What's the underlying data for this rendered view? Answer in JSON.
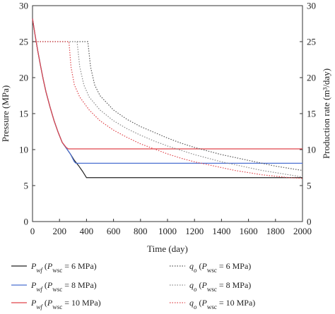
{
  "chart_data": {
    "type": "line",
    "xlabel": "Time (day)",
    "ylabel_left": "Pressure (MPa)",
    "ylabel_right": "Production rate (m³/day)",
    "xlim": [
      0,
      2000
    ],
    "ylim_left": [
      0,
      30
    ],
    "ylim_right": [
      0,
      30
    ],
    "x_ticks": [
      "0",
      "200",
      "400",
      "600",
      "800",
      "1000",
      "1200",
      "1400",
      "1600",
      "1800",
      "2000"
    ],
    "y_ticks_left": [
      "0",
      "5",
      "10",
      "15",
      "20",
      "25",
      "30"
    ],
    "y_ticks_right": [
      "0",
      "5",
      "10",
      "15",
      "20",
      "25",
      "30"
    ],
    "grid": false,
    "legend_position": "bottom",
    "series": [
      {
        "name_parts": [
          "P",
          "wf",
          " (",
          "P",
          "wsc",
          " = 6 MPa)"
        ],
        "axis": "left",
        "style": "solid",
        "color": "#222222",
        "points": [
          [
            0,
            28.2
          ],
          [
            20,
            25.8
          ],
          [
            40,
            23.6
          ],
          [
            60,
            21.6
          ],
          [
            80,
            19.7
          ],
          [
            100,
            18.0
          ],
          [
            130,
            15.9
          ],
          [
            160,
            14.0
          ],
          [
            190,
            12.4
          ],
          [
            220,
            11.0
          ],
          [
            250,
            10.2
          ],
          [
            280,
            9.4
          ],
          [
            310,
            8.5
          ],
          [
            340,
            7.8
          ],
          [
            370,
            7.0
          ],
          [
            400,
            6.1
          ],
          [
            2000,
            6.1
          ]
        ]
      },
      {
        "name_parts": [
          "P",
          "wf",
          " (",
          "P",
          "wsc",
          " = 8 MPa)"
        ],
        "axis": "left",
        "style": "solid",
        "color": "#4a6fd1",
        "points": [
          [
            0,
            28.2
          ],
          [
            20,
            25.8
          ],
          [
            40,
            23.6
          ],
          [
            60,
            21.6
          ],
          [
            80,
            19.7
          ],
          [
            100,
            18.0
          ],
          [
            130,
            15.9
          ],
          [
            160,
            14.0
          ],
          [
            190,
            12.4
          ],
          [
            220,
            11.0
          ],
          [
            250,
            10.2
          ],
          [
            280,
            9.4
          ],
          [
            310,
            8.3
          ],
          [
            322,
            8.1
          ],
          [
            2000,
            8.1
          ]
        ]
      },
      {
        "name_parts": [
          "P",
          "wf",
          " (",
          "P",
          "wsc",
          " = 10 MPa)"
        ],
        "axis": "left",
        "style": "solid",
        "color": "#e0454b",
        "points": [
          [
            0,
            28.2
          ],
          [
            20,
            25.8
          ],
          [
            40,
            23.6
          ],
          [
            60,
            21.6
          ],
          [
            80,
            19.7
          ],
          [
            100,
            18.0
          ],
          [
            130,
            15.9
          ],
          [
            160,
            14.0
          ],
          [
            190,
            12.4
          ],
          [
            220,
            11.0
          ],
          [
            250,
            10.3
          ],
          [
            265,
            10.1
          ],
          [
            2000,
            10.1
          ]
        ]
      },
      {
        "name_parts": [
          "q",
          "o",
          " (",
          "P",
          "wsc",
          " = 6 MPa)"
        ],
        "axis": "right",
        "style": "dotted",
        "color": "#555555",
        "points": [
          [
            0,
            25
          ],
          [
            410,
            25
          ],
          [
            430,
            21.5
          ],
          [
            460,
            19.0
          ],
          [
            500,
            17.5
          ],
          [
            600,
            15.5
          ],
          [
            700,
            14.2
          ],
          [
            800,
            13.2
          ],
          [
            900,
            12.4
          ],
          [
            1000,
            11.6
          ],
          [
            1100,
            10.9
          ],
          [
            1200,
            10.3
          ],
          [
            1300,
            9.8
          ],
          [
            1400,
            9.3
          ],
          [
            1500,
            8.9
          ],
          [
            1600,
            8.5
          ],
          [
            1700,
            8.1
          ],
          [
            1800,
            7.7
          ],
          [
            1900,
            7.4
          ],
          [
            2000,
            7.1
          ]
        ]
      },
      {
        "name_parts": [
          "q",
          "o",
          " (",
          "P",
          "wsc",
          " = 8 MPa)"
        ],
        "axis": "right",
        "style": "dotted",
        "color": "#8a8a8a",
        "points": [
          [
            0,
            25
          ],
          [
            330,
            25
          ],
          [
            350,
            21.5
          ],
          [
            380,
            19.0
          ],
          [
            420,
            17.3
          ],
          [
            500,
            15.5
          ],
          [
            600,
            14.0
          ],
          [
            700,
            12.9
          ],
          [
            800,
            12.0
          ],
          [
            900,
            11.2
          ],
          [
            1000,
            10.5
          ],
          [
            1100,
            9.9
          ],
          [
            1200,
            9.3
          ],
          [
            1300,
            8.8
          ],
          [
            1400,
            8.3
          ],
          [
            1500,
            7.9
          ],
          [
            1600,
            7.5
          ],
          [
            1700,
            7.1
          ],
          [
            1800,
            6.8
          ],
          [
            1900,
            6.5
          ],
          [
            2000,
            6.2
          ]
        ]
      },
      {
        "name_parts": [
          "q",
          "o",
          " (",
          "P",
          "wsc",
          " = 10 MPa)"
        ],
        "axis": "right",
        "style": "dotted",
        "color": "#e0454b",
        "points": [
          [
            0,
            25
          ],
          [
            270,
            25
          ],
          [
            285,
            21.5
          ],
          [
            310,
            19.0
          ],
          [
            350,
            17.3
          ],
          [
            420,
            15.5
          ],
          [
            500,
            14.0
          ],
          [
            600,
            12.7
          ],
          [
            700,
            11.7
          ],
          [
            800,
            10.8
          ],
          [
            900,
            10.1
          ],
          [
            1000,
            9.4
          ],
          [
            1100,
            8.8
          ],
          [
            1200,
            8.3
          ],
          [
            1300,
            7.9
          ],
          [
            1400,
            7.5
          ],
          [
            1500,
            7.1
          ],
          [
            1600,
            6.8
          ],
          [
            1700,
            6.5
          ],
          [
            1800,
            6.3
          ],
          [
            1900,
            6.1
          ],
          [
            2000,
            6.0
          ]
        ]
      }
    ]
  }
}
